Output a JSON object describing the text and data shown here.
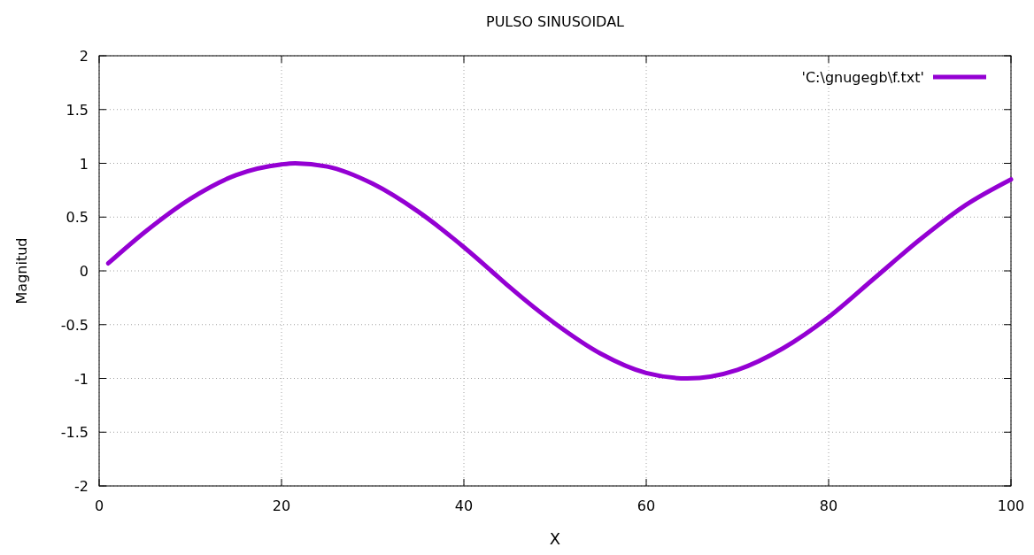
{
  "chart_data": {
    "type": "line",
    "title": "PULSO SINUSOIDAL",
    "xlabel": "X",
    "ylabel": "Magnitud",
    "xlim": [
      0,
      100
    ],
    "xticks": [
      0,
      20,
      40,
      60,
      80,
      100
    ],
    "ylim": [
      -2,
      2
    ],
    "yticks": [
      -2,
      -1.5,
      -1,
      -0.5,
      0,
      0.5,
      1,
      1.5,
      2
    ],
    "grid": true,
    "legend": "top right",
    "line_style": "solid",
    "marker": "none",
    "series": [
      {
        "name": "'C:\\gnugegb\\f.txt'",
        "color": "#9400d3",
        "x": [
          1,
          5,
          10,
          15,
          20,
          21.5,
          25,
          30,
          35,
          40,
          43,
          45,
          50,
          55,
          60,
          64.5,
          70,
          75,
          80,
          85,
          90,
          95,
          100
        ],
        "values": [
          0.07,
          0.36,
          0.67,
          0.89,
          0.99,
          1,
          0.97,
          0.81,
          0.55,
          0.22,
          0,
          -0.15,
          -0.49,
          -0.77,
          -0.95,
          -1,
          -0.92,
          -0.72,
          -0.43,
          -0.07,
          0.29,
          0.61,
          0.85
        ]
      }
    ]
  }
}
